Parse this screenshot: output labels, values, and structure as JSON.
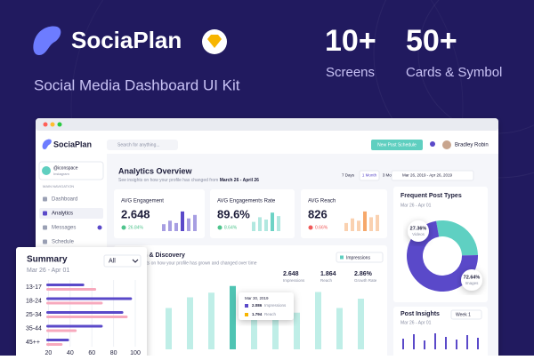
{
  "header": {
    "brand": "SociaPlan",
    "tagline": "Social Media Dashboard UI Kit",
    "stats": [
      {
        "value": "10+",
        "label": "Screens"
      },
      {
        "value": "50+",
        "label": "Cards & Symbol"
      }
    ]
  },
  "app": {
    "brand": "SociaPlan",
    "search": "Search for anything...",
    "button": "New Post Schedule",
    "user": "Bradley Robin",
    "profile": {
      "handle": "@iconspace",
      "network": "Instagram"
    },
    "nav_heading": "MAIN NAVIGATION",
    "nav": [
      "Dashboard",
      "Analytics",
      "Messages",
      "Schedule"
    ],
    "overview": {
      "title": "Analytics Overview",
      "subtitle": "See insights on how your profile has changed from",
      "range": "March 26 - April 26",
      "periods": [
        "7 Days",
        "1 Month",
        "3 Months"
      ],
      "date_range": "Mar 26, 2019 - Apr 26, 2019"
    },
    "cards": [
      {
        "title": "AVG Engagement",
        "value": "2.648",
        "change": "26.84%",
        "color": "#5a49c9",
        "bars": [
          30,
          45,
          35,
          85,
          55,
          70
        ],
        "ylim": [
          0,
          100
        ]
      },
      {
        "title": "AVG Engagements Rate",
        "value": "89.6%",
        "change": "8.64%",
        "color": "#6cd3c5",
        "bars": [
          40,
          60,
          50,
          80,
          65
        ],
        "ylim": [
          0,
          100
        ]
      },
      {
        "title": "AVG Reach",
        "value": "826",
        "change": "0.66%",
        "color": "#f6a86b",
        "bars": [
          35,
          55,
          45,
          85,
          60,
          70
        ],
        "ylim": [
          0,
          100
        ]
      }
    ],
    "growth": {
      "title": "Growth & Discovery",
      "subtitle": "See insights on how your profile has grown and changed over time",
      "metric": "Impressions",
      "stats": [
        {
          "value": "2.648",
          "label": "Impressions"
        },
        {
          "value": "1.864",
          "label": "Reach"
        },
        {
          "value": "2.86%",
          "label": "Growth Rate"
        }
      ],
      "tooltip": {
        "date": "Mar 30, 2019",
        "rows": [
          {
            "value": "2.086",
            "label": "Impressions"
          },
          {
            "value": "1.794",
            "label": "Reach"
          }
        ]
      },
      "bars": [
        62,
        78,
        85,
        95,
        70,
        82,
        55,
        86,
        62,
        76
      ],
      "highlight": 3,
      "ylim": [
        0,
        100
      ],
      "color": "#bfeee7",
      "highlight_color": "#4fc4b3"
    },
    "post_types": {
      "title": "Frequent Post Types",
      "range": "Mar 26 - Apr 01",
      "segments": [
        {
          "label": "Videos",
          "value": 27.36,
          "value_label": "27.36%",
          "color": "#5fd0c2"
        },
        {
          "label": "Images",
          "value": 72.64,
          "value_label": "72.64%",
          "color": "#5a49c9"
        }
      ]
    },
    "post_insights": {
      "title": "Post Insights",
      "range": "Mar 26 - Apr 01",
      "filter": "Week 1",
      "bars": [
        60,
        85,
        50,
        90,
        70,
        55,
        80,
        65
      ],
      "ylim": [
        0,
        100
      ],
      "color": "#5a49c9"
    }
  },
  "summary": {
    "title": "Summary",
    "filter": "All",
    "range": "Mar 26 - Apr 01",
    "chart_data": {
      "type": "bar",
      "orientation": "horizontal",
      "categories": [
        "13-17",
        "18-24",
        "25-34",
        "35-44",
        "45++"
      ],
      "series": [
        {
          "color": "#5a49c9",
          "values": [
            53,
            97,
            89,
            70,
            39
          ]
        },
        {
          "color": "#f7a9bd",
          "values": [
            64,
            70,
            93,
            46,
            33
          ]
        }
      ],
      "xlim": [
        18,
        100
      ],
      "xticks": [
        20,
        40,
        60,
        80,
        100
      ]
    }
  }
}
